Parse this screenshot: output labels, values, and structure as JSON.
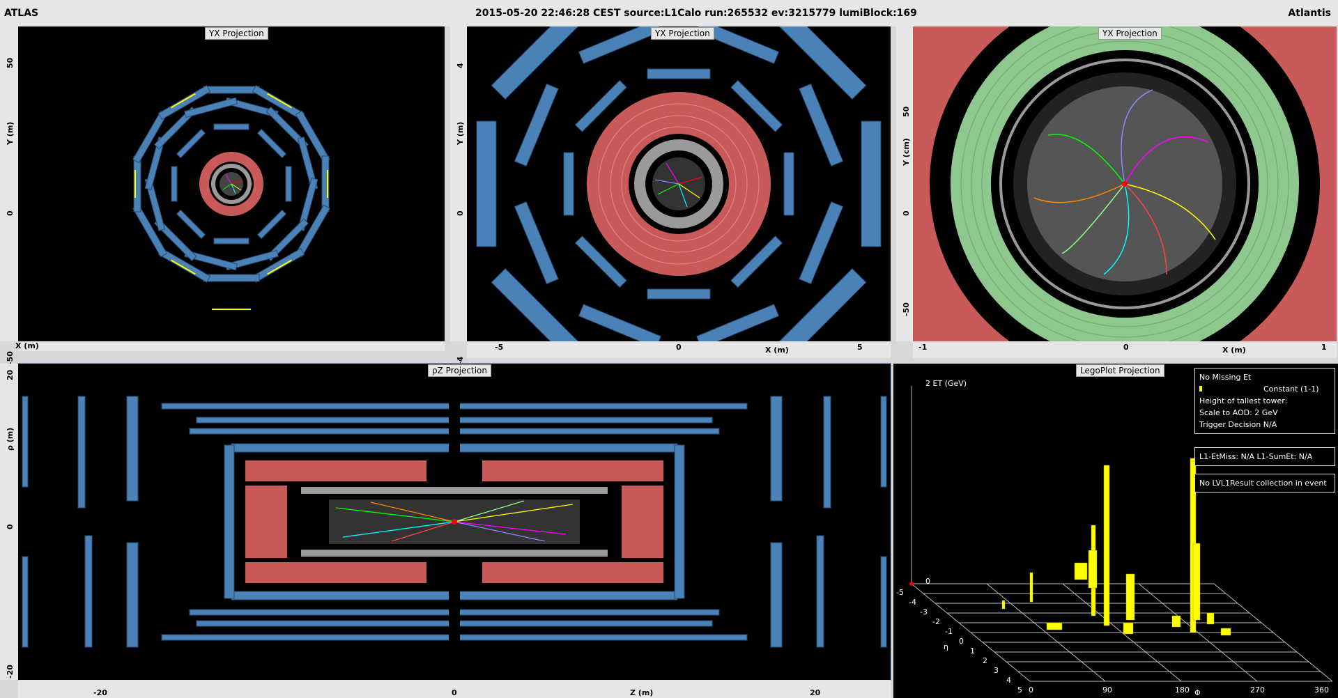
{
  "header": {
    "left": "ATLAS",
    "center": "2015-05-20 22:46:28 CEST source:L1Calo run:265532 ev:3215779 lumiBlock:169",
    "right": "Atlantis"
  },
  "panels": {
    "yx1": {
      "title": "YX Projection",
      "xlabel": "X (m)",
      "ylabel": "Y (m)",
      "yticks": [
        "50",
        "0",
        "-50"
      ]
    },
    "yx2": {
      "title": "YX Projection",
      "xlabel": "X (m)",
      "ylabel": "Y (m)",
      "yticks": [
        "4",
        "0",
        "-4"
      ],
      "xticks": [
        "-5",
        "0",
        "5"
      ]
    },
    "yx3": {
      "title": "YX Projection",
      "xlabel": "X (m)",
      "ylabel": "Y (cm)",
      "yticks": [
        "50",
        "0",
        "-50"
      ],
      "xticks": [
        "-1",
        "0",
        "1"
      ]
    },
    "rz": {
      "title": "ρZ Projection",
      "xlabel": "Z (m)",
      "ylabel": "ρ (m)",
      "yticks": [
        "20",
        "0",
        "-20"
      ],
      "xticks": [
        "-20",
        "0",
        "20"
      ]
    },
    "lego": {
      "title": "LegoPlot Projection",
      "zlabel": "2 ET (GeV)",
      "zero": "0",
      "etalabel": "η",
      "philabel": "Φ",
      "etaticks": [
        "-5",
        "-4",
        "-3",
        "-2",
        "-1",
        "0",
        "1",
        "2",
        "3",
        "4",
        "5"
      ],
      "phiticks": [
        "0",
        "90",
        "180",
        "270",
        "360"
      ],
      "box1": [
        "No Missing Et",
        "Constant (1-1)",
        "Height of tallest tower:",
        "Scale to AOD: 2 GeV",
        "Trigger Decision N/A"
      ],
      "box2": "L1-EtMiss: N/A L1-SumEt: N/A",
      "box3": "No LVL1Result collection in event"
    }
  },
  "colors": {
    "muon": "#4a82b8",
    "lar": "#c85a5a",
    "tile": "#8fc88f",
    "inner": "#9a9a9a",
    "hit": "#ffff00",
    "bg": "#000000"
  }
}
